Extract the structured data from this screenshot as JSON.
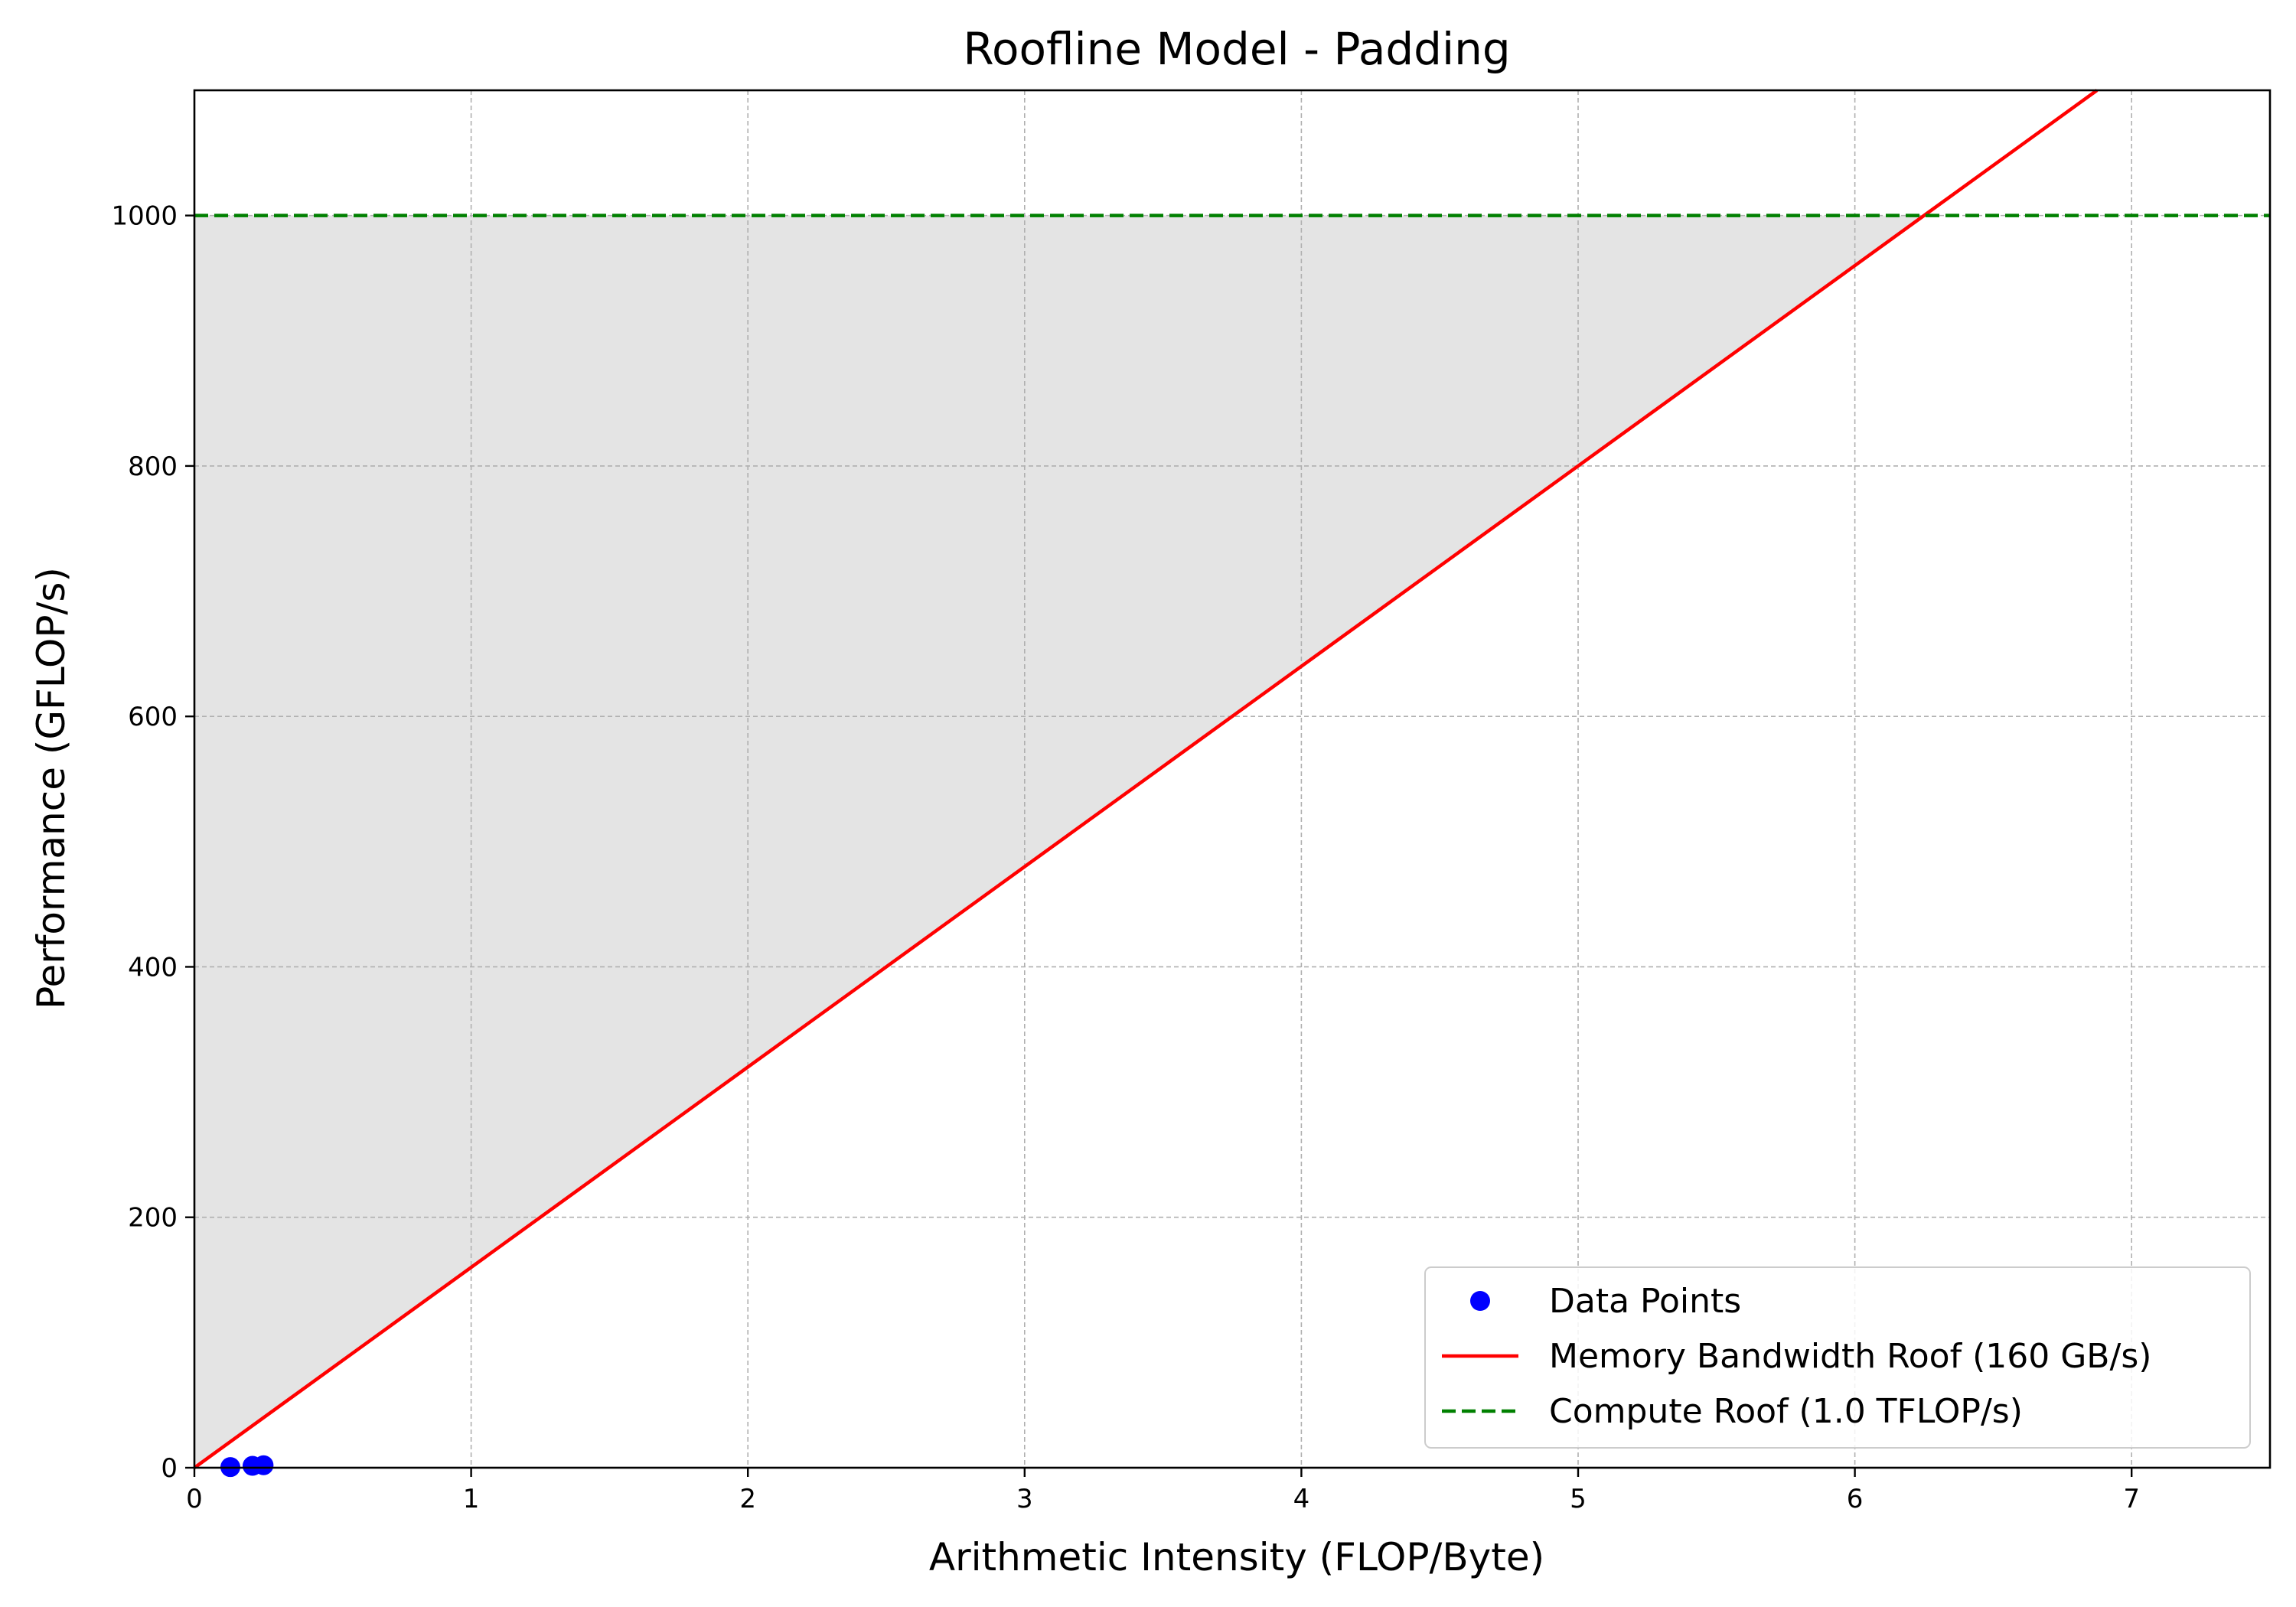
{
  "chart_data": {
    "type": "line",
    "title": "Roofline Model - Padding",
    "xlabel": "Arithmetic Intensity (FLOP/Byte)",
    "ylabel": "Performance (GFLOP/s)",
    "xlim": [
      0,
      7.5
    ],
    "ylim": [
      0,
      1100
    ],
    "xticks": [
      0,
      1,
      2,
      3,
      4,
      5,
      6,
      7
    ],
    "xtick_labels": [
      "0",
      "1",
      "2",
      "3",
      "4",
      "5",
      "6",
      "7"
    ],
    "yticks": [
      0,
      200,
      400,
      600,
      800,
      1000
    ],
    "ytick_labels": [
      "0",
      "200",
      "400",
      "600",
      "800",
      "1000"
    ],
    "grid": true,
    "legend_position": "lower-right",
    "shaded_region": {
      "description": "area between memory roof and compute roof",
      "color": "#e4e4e4",
      "x_range": [
        0,
        6.25
      ]
    },
    "series": [
      {
        "name": "Data Points",
        "kind": "scatter",
        "color": "#0000ff",
        "x": [
          0.13,
          0.21,
          0.25
        ],
        "y": [
          0.5,
          1.5,
          2.0
        ]
      },
      {
        "name": "Memory Bandwidth Roof (160 GB/s)",
        "kind": "line",
        "color": "#ff0000",
        "style": "solid",
        "slope": 160,
        "x": [
          0,
          6.875
        ],
        "y": [
          0,
          1100
        ]
      },
      {
        "name": "Compute Roof (1.0 TFLOP/s)",
        "kind": "line",
        "color": "#008000",
        "style": "dashed",
        "x": [
          0,
          7.5
        ],
        "y": [
          1000,
          1000
        ]
      }
    ]
  }
}
